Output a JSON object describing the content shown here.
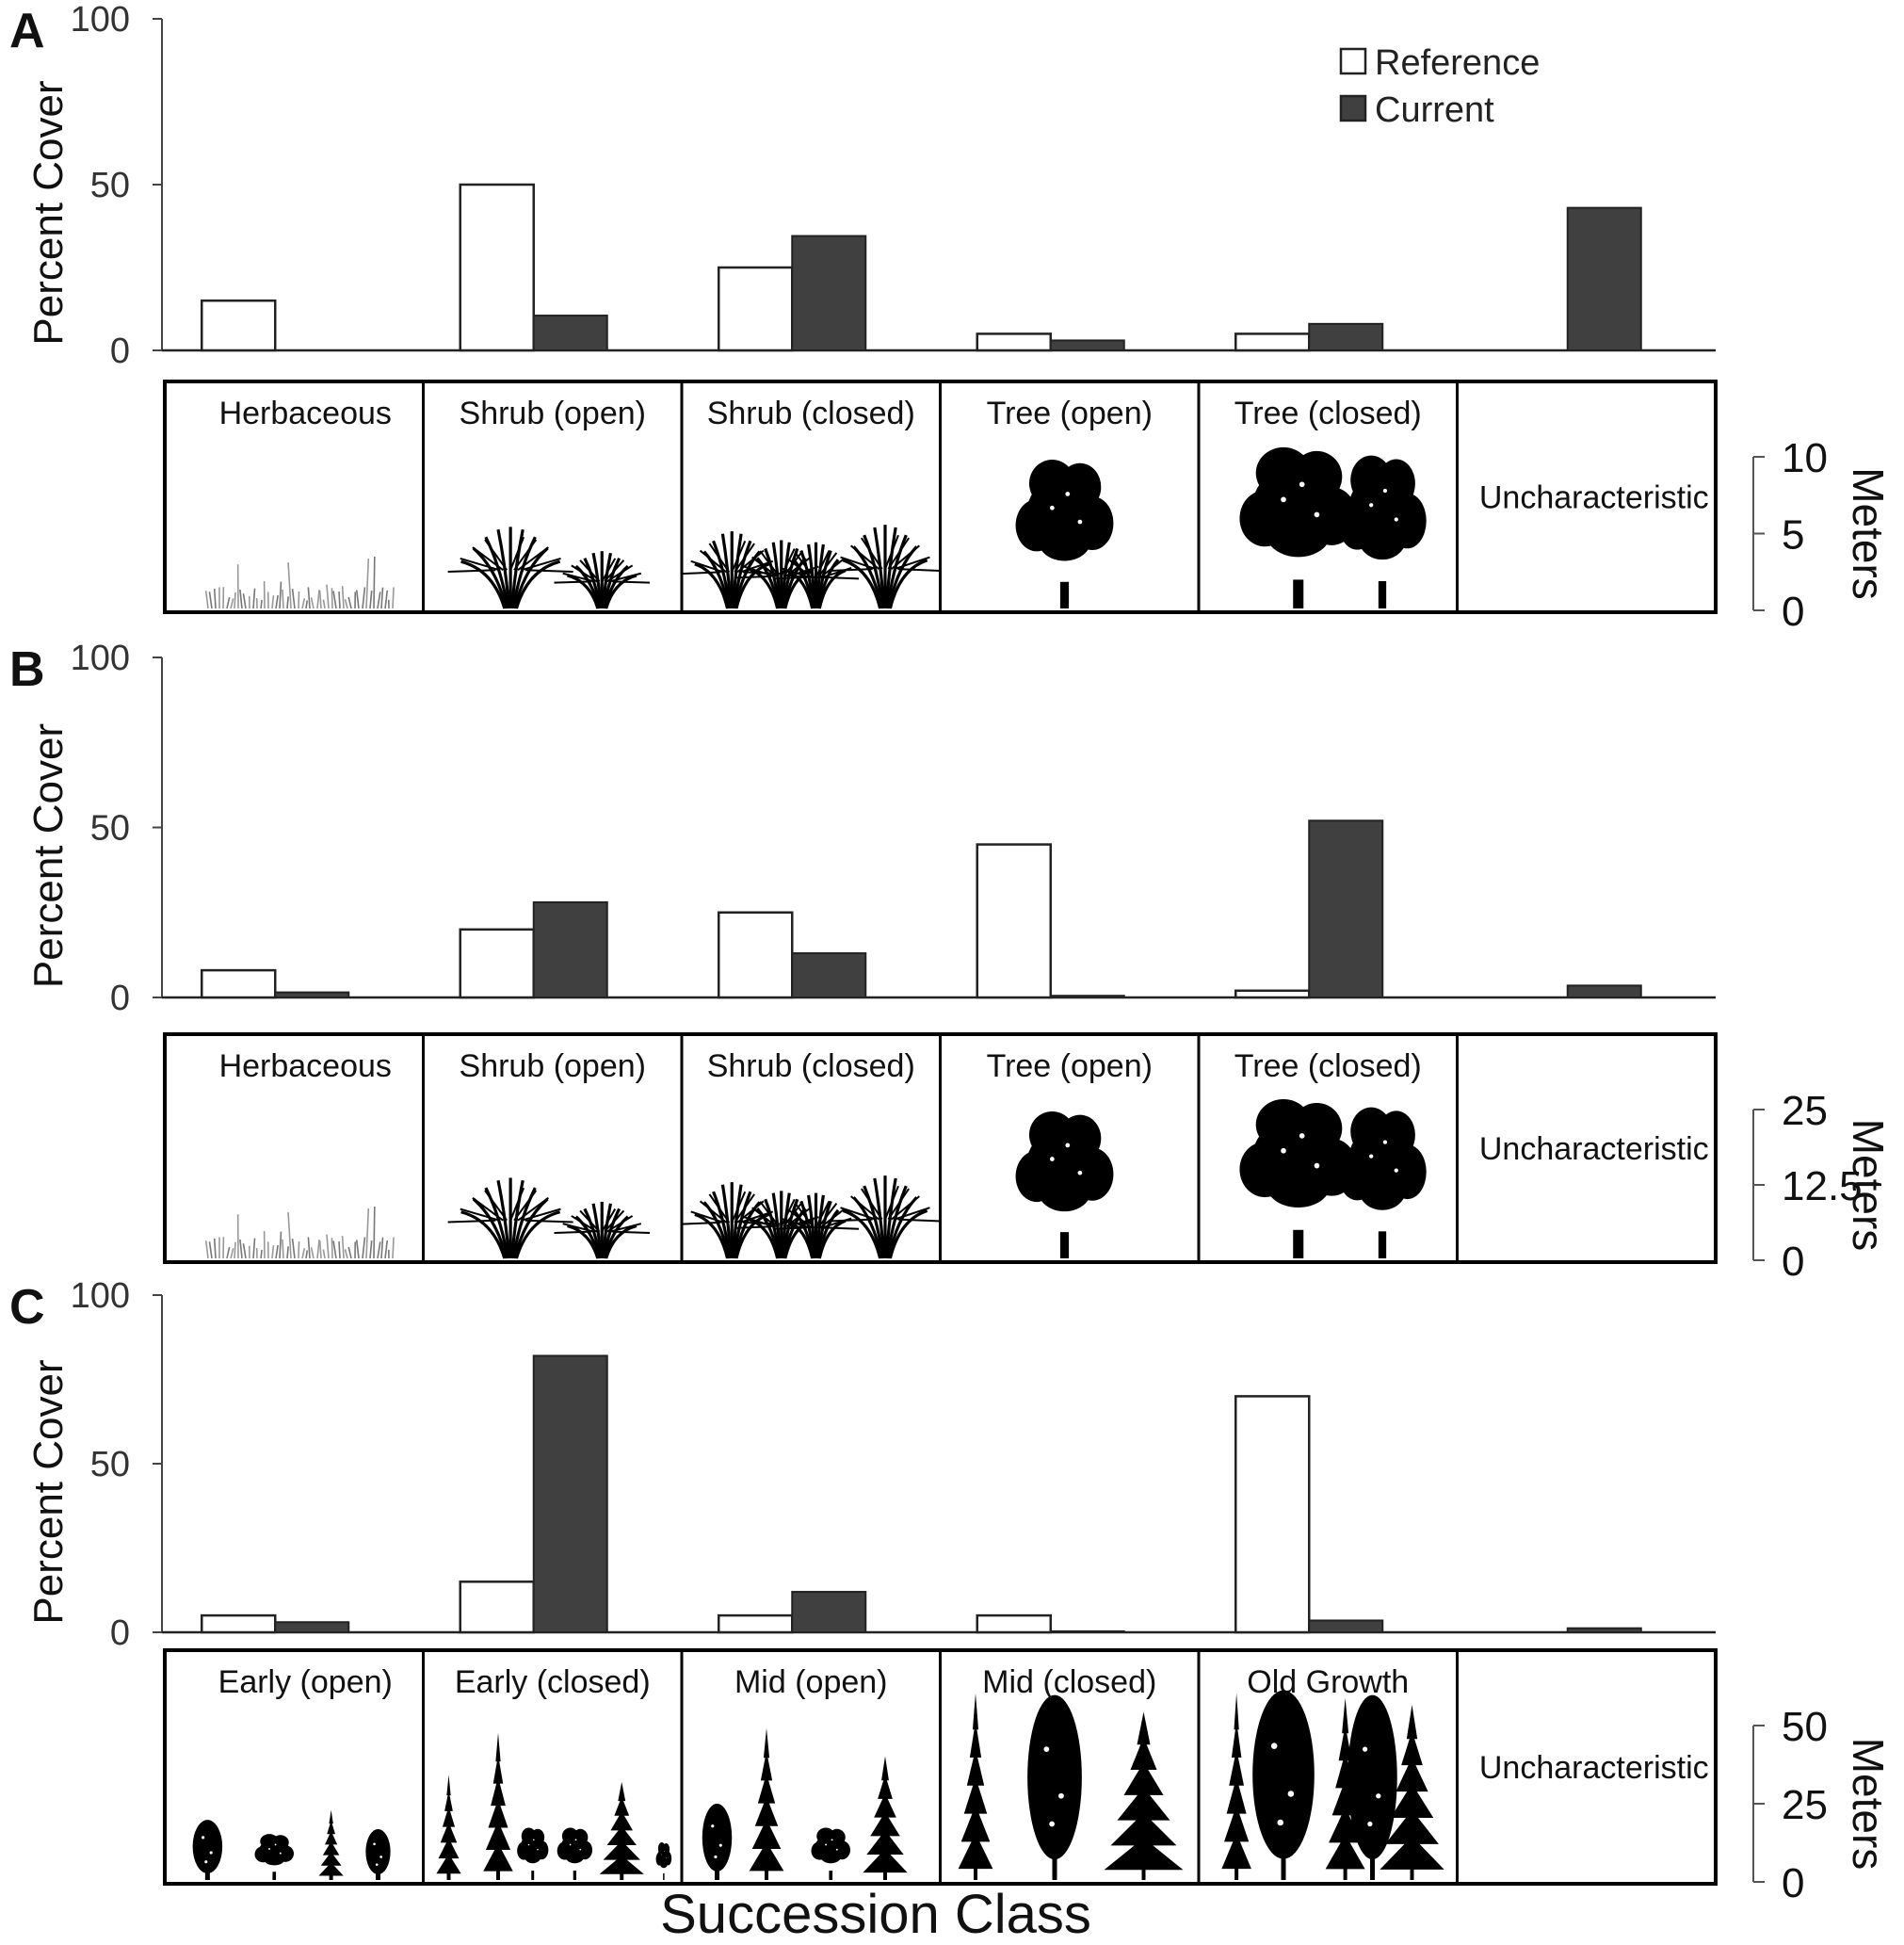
{
  "figure": {
    "xlabel": "Succession Class",
    "ylabel": "Percent Cover",
    "meters_label": "Meters",
    "legend": [
      {
        "key": "ref",
        "label": "Reference",
        "fill": "#ffffff",
        "stroke": "#222222"
      },
      {
        "key": "cur",
        "label": "Current",
        "fill": "#404040",
        "stroke": "#222222"
      }
    ]
  },
  "chart_data": [
    {
      "type": "bar",
      "panel": "A",
      "ylim": [
        0,
        100
      ],
      "yticks": [
        0,
        50,
        100
      ],
      "categories": [
        "Herbaceous",
        "Shrub (open)",
        "Shrub (closed)",
        "Tree (open)",
        "Tree (closed)",
        "Uncharacteristic"
      ],
      "series": [
        {
          "name": "Reference",
          "values": [
            15,
            50,
            25,
            5,
            5,
            0
          ]
        },
        {
          "name": "Current",
          "values": [
            0,
            10.5,
            34.5,
            3,
            8,
            43
          ]
        }
      ],
      "scale": {
        "ticks": [
          "10",
          "5",
          "0"
        ]
      },
      "vegetation": [
        "grass",
        "shrub-open",
        "shrub-closed",
        "tree-open",
        "tree-closed",
        "none"
      ]
    },
    {
      "type": "bar",
      "panel": "B",
      "ylim": [
        0,
        100
      ],
      "yticks": [
        0,
        50,
        100
      ],
      "categories": [
        "Herbaceous",
        "Shrub (open)",
        "Shrub (closed)",
        "Tree (open)",
        "Tree (closed)",
        "Uncharacteristic"
      ],
      "series": [
        {
          "name": "Reference",
          "values": [
            8,
            20,
            25,
            45,
            2,
            0
          ]
        },
        {
          "name": "Current",
          "values": [
            1.5,
            28,
            13,
            0.5,
            52,
            3.5
          ]
        }
      ],
      "scale": {
        "ticks": [
          "25",
          "12.5",
          "0"
        ]
      },
      "vegetation": [
        "grass",
        "shrub-open",
        "shrub-closed",
        "tree-open",
        "tree-closed",
        "none"
      ]
    },
    {
      "type": "bar",
      "panel": "C",
      "ylim": [
        0,
        100
      ],
      "yticks": [
        0,
        50,
        100
      ],
      "categories": [
        "Early (open)",
        "Early (closed)",
        "Mid (open)",
        "Mid (closed)",
        "Old Growth",
        "Uncharacteristic"
      ],
      "series": [
        {
          "name": "Reference",
          "values": [
            5,
            15,
            5,
            5,
            70,
            0
          ]
        },
        {
          "name": "Current",
          "values": [
            3,
            82,
            12,
            0.3,
            3.5,
            1.2
          ]
        }
      ],
      "scale": {
        "ticks": [
          "50",
          "25",
          "0"
        ]
      },
      "vegetation": [
        "early-open",
        "early-closed",
        "mid-open",
        "mid-closed",
        "old-growth",
        "none"
      ]
    }
  ]
}
